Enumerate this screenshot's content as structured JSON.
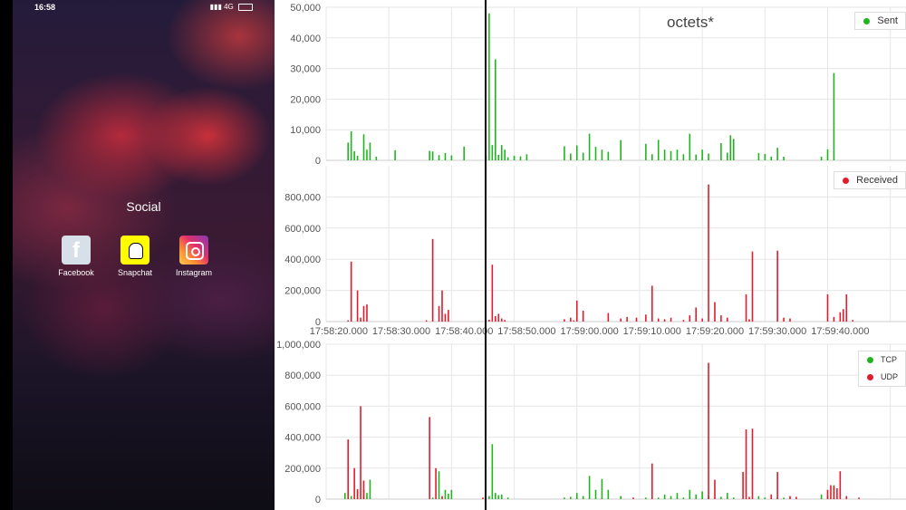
{
  "status_bar": {
    "time": "16:58",
    "network": "4G",
    "battery": "46"
  },
  "home": {
    "folder_label": "Social",
    "apps": [
      {
        "name": "Facebook",
        "icon": "facebook-icon"
      },
      {
        "name": "Snapchat",
        "icon": "snapchat-icon"
      },
      {
        "name": "Instagram",
        "icon": "instagram-icon"
      }
    ]
  },
  "chart_data": [
    {
      "type": "bar",
      "title": "octets*",
      "legend": [
        {
          "label": "Sent",
          "color": "#22b722"
        }
      ],
      "legend_placement": "top-right",
      "ylim": [
        0,
        50000
      ],
      "yticks": [
        "0",
        "10,000",
        "20,000",
        "30,000",
        "40,000",
        "50,000"
      ],
      "grid": true,
      "series": [
        {
          "name": "Sent",
          "color": "#1fb51f",
          "x": [
            3.5,
            4,
            4.5,
            5,
            6,
            6.5,
            7,
            8,
            11,
            16.5,
            17,
            18,
            19,
            20,
            22,
            25.5,
            26,
            26.5,
            27,
            27.5,
            28,
            28.5,
            29,
            30,
            31,
            32,
            38,
            39,
            40,
            41,
            42,
            43,
            44,
            45,
            47,
            51,
            52,
            53,
            54,
            55,
            56,
            57,
            58,
            59,
            60,
            61,
            63,
            64,
            64.5,
            65,
            69,
            70,
            71,
            72,
            73,
            79,
            80,
            81
          ],
          "values": [
            5800,
            9500,
            3000,
            1500,
            8500,
            3500,
            5800,
            1200,
            3300,
            3100,
            2900,
            1700,
            2400,
            1600,
            4500,
            1500,
            48000,
            5000,
            33000,
            1800,
            5000,
            3500,
            1000,
            1500,
            1300,
            2000,
            4600,
            2200,
            4900,
            2500,
            8700,
            4400,
            3500,
            2800,
            6600,
            5400,
            2000,
            6700,
            3500,
            3000,
            3500,
            2000,
            8700,
            1900,
            3500,
            2200,
            5600,
            2500,
            8200,
            7000,
            2400,
            2100,
            1200,
            4100,
            1200,
            1200,
            3600,
            28500
          ]
        }
      ]
    },
    {
      "type": "bar",
      "legend": [
        {
          "label": "Received",
          "color": "#e11b2b"
        }
      ],
      "legend_placement": "top-right",
      "ylim": [
        0,
        1000000
      ],
      "yticks": [
        "0",
        "200,000",
        "400,000",
        "600,000",
        "800,000"
      ],
      "xticks": [
        "17:58:20.000",
        "17:58:30.000",
        "17:58:40.000",
        "17:58:50.000",
        "17:59:00.000",
        "17:59:10.000",
        "17:59:20.000",
        "17:59:30.000",
        "17:59:40.000"
      ],
      "grid": true,
      "series": [
        {
          "name": "Received",
          "color": "#e21c2c",
          "x": [
            3.5,
            4,
            5,
            5.5,
            6,
            6.5,
            16,
            17,
            18,
            18.5,
            19,
            19.5,
            25.5,
            26,
            26.5,
            27,
            27.5,
            28,
            28.5,
            38,
            39,
            39.5,
            40,
            41,
            45,
            47,
            48,
            49.5,
            51,
            52,
            53,
            54,
            55,
            57,
            58,
            59,
            60,
            61,
            62,
            63,
            64,
            67,
            67.5,
            68,
            72,
            73,
            74,
            80,
            81,
            82,
            82.5,
            83,
            84
          ],
          "values": [
            8000,
            385000,
            200000,
            25000,
            100000,
            110000,
            8000,
            530000,
            100000,
            200000,
            50000,
            75000,
            8000,
            12000,
            365000,
            35000,
            50000,
            20000,
            10000,
            15000,
            25000,
            8000,
            135000,
            70000,
            55000,
            20000,
            30000,
            25000,
            45000,
            230000,
            20000,
            15000,
            25000,
            10000,
            40000,
            90000,
            20000,
            880000,
            125000,
            40000,
            25000,
            175000,
            15000,
            450000,
            455000,
            25000,
            20000,
            175000,
            30000,
            60000,
            80000,
            175000,
            10000
          ]
        }
      ]
    },
    {
      "type": "bar",
      "legend": [
        {
          "label": "TCP",
          "color": "#1fb51f"
        },
        {
          "label": "UDP",
          "color": "#e21c2c"
        }
      ],
      "legend_placement": "top-right",
      "ylim": [
        0,
        1000000
      ],
      "yticks": [
        "0",
        "200,000",
        "400,000",
        "600,000",
        "800,000",
        "1,000,000"
      ],
      "grid": true,
      "series": [
        {
          "name": "TCP",
          "color": "#1fb51f",
          "x": [
            3,
            4,
            5,
            6,
            6.5,
            7,
            17,
            18,
            19,
            19.5,
            20,
            26,
            26.5,
            27,
            27.5,
            28,
            29,
            38,
            39,
            40,
            41,
            42,
            43,
            44,
            45,
            47,
            51,
            53,
            54,
            55,
            56,
            57,
            58,
            59,
            60,
            61,
            63,
            64,
            65,
            69,
            70,
            72,
            73,
            79,
            80,
            81
          ],
          "values": [
            40000,
            20000,
            50000,
            60000,
            40000,
            125000,
            10000,
            180000,
            60000,
            35000,
            60000,
            20000,
            355000,
            40000,
            25000,
            30000,
            10000,
            10000,
            15000,
            40000,
            20000,
            150000,
            60000,
            130000,
            60000,
            20000,
            10000,
            10000,
            30000,
            20000,
            40000,
            10000,
            60000,
            30000,
            50000,
            25000,
            15000,
            40000,
            10000,
            20000,
            10000,
            10000,
            10000,
            30000,
            20000,
            90000
          ]
        },
        {
          "name": "UDP",
          "color": "#e21c2c",
          "x": [
            3.5,
            4.5,
            5,
            5.5,
            6,
            16.5,
            17.5,
            18.5,
            25,
            49,
            52,
            61,
            62,
            66.5,
            67,
            67.5,
            68,
            71,
            72,
            74,
            75,
            80,
            80.5,
            81,
            81.5,
            82,
            83,
            85
          ],
          "values": [
            385000,
            200000,
            65000,
            600000,
            120000,
            530000,
            200000,
            20000,
            10000,
            10000,
            230000,
            880000,
            125000,
            175000,
            450000,
            15000,
            455000,
            30000,
            175000,
            20000,
            15000,
            60000,
            90000,
            85000,
            70000,
            180000,
            20000,
            10000
          ]
        }
      ]
    }
  ]
}
